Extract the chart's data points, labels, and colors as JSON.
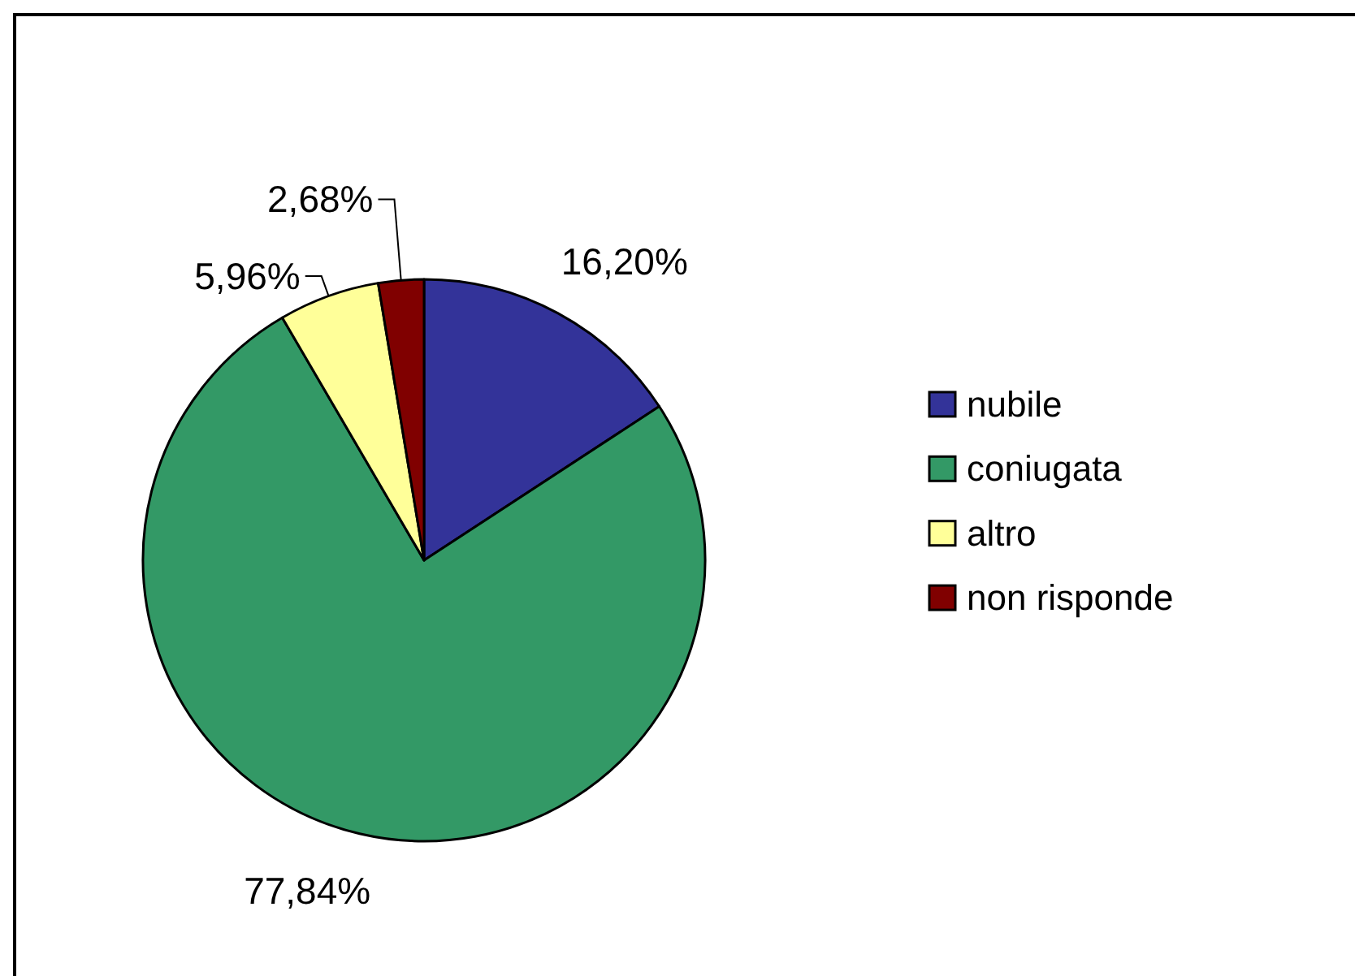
{
  "chart_data": {
    "type": "pie",
    "categories": [
      "nubile",
      "coniugata",
      "altro",
      "non risponde"
    ],
    "values": [
      16.2,
      77.84,
      5.96,
      2.68
    ],
    "colors": [
      "#333399",
      "#339966",
      "#ffff99",
      "#800000"
    ],
    "value_labels": [
      "16,20%",
      "77,84%",
      "5,96%",
      "2,68%"
    ],
    "legend": "right"
  }
}
